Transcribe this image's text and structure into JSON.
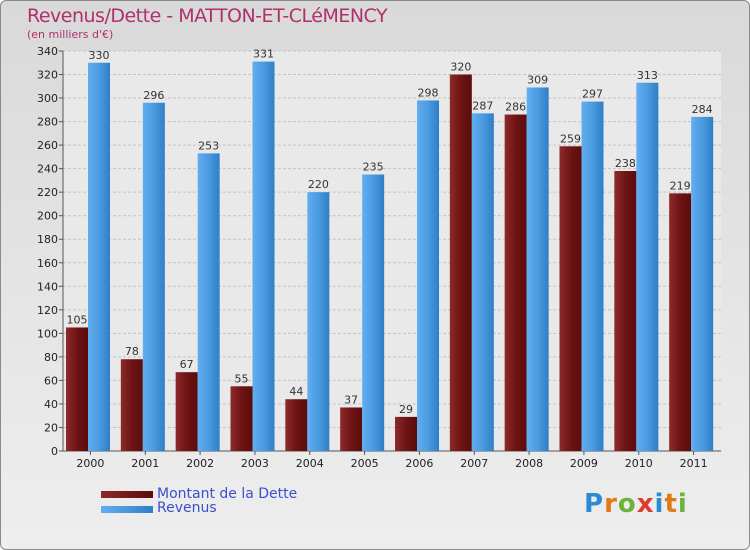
{
  "title": "Revenus/Dette - MATTON-ET-CLéMENCY",
  "subtitle": "(en milliers d'€)",
  "legend": {
    "debt": "Montant de la Dette",
    "revenue": "Revenus"
  },
  "logo": {
    "text": "Proxiti",
    "letters": [
      "P",
      "r",
      "o",
      "x",
      "i",
      "t",
      "i"
    ],
    "letter_colors": [
      "#2a8ad4",
      "#e07a18",
      "#6cb33a",
      "#e03a30",
      "#2a8ad4",
      "#e07a18",
      "#6cb33a"
    ]
  },
  "colors": {
    "debt": "#7a1c1c",
    "debt_light": "#a83a3a",
    "revenue": "#4a9be0",
    "revenue_dark": "#2f7fc8",
    "title": "#b0306a",
    "legend_text": "#3a4fd0"
  },
  "chart_data": {
    "type": "bar",
    "title": "Revenus/Dette - MATTON-ET-CLéMENCY",
    "ylabel": "(en milliers d'€)",
    "categories": [
      "2000",
      "2001",
      "2002",
      "2003",
      "2004",
      "2005",
      "2006",
      "2007",
      "2008",
      "2009",
      "2010",
      "2011"
    ],
    "series": [
      {
        "name": "Montant de la Dette",
        "values": [
          105,
          78,
          67,
          55,
          44,
          37,
          29,
          320,
          286,
          259,
          238,
          219
        ]
      },
      {
        "name": "Revenus",
        "values": [
          330,
          296,
          253,
          331,
          220,
          235,
          298,
          287,
          309,
          297,
          313,
          284
        ]
      }
    ],
    "ylim": [
      0,
      340
    ],
    "yticks": [
      0,
      20,
      40,
      60,
      80,
      100,
      120,
      140,
      160,
      180,
      200,
      220,
      240,
      260,
      280,
      300,
      320,
      340
    ],
    "grid": true,
    "legend_position": "bottom-left"
  }
}
